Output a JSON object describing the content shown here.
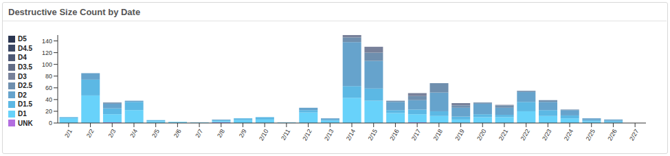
{
  "chart_data": {
    "type": "bar",
    "title": "Destructive Size Count by Date",
    "stacked": true,
    "legend": "left",
    "categories": [
      "2/1",
      "2/2",
      "2/3",
      "2/4",
      "2/5",
      "2/6",
      "2/7",
      "2/8",
      "2/9",
      "2/10",
      "2/11",
      "2/12",
      "2/13",
      "2/14",
      "2/15",
      "2/16",
      "2/17",
      "2/18",
      "2/19",
      "2/20",
      "2/21",
      "2/22",
      "2/23",
      "2/24",
      "2/25",
      "2/26",
      "2/27"
    ],
    "ylim": [
      0,
      150
    ],
    "yticks": [
      0,
      20,
      40,
      60,
      80,
      100,
      120,
      140
    ],
    "series": [
      {
        "name": "D5",
        "color": "#2a3550",
        "values": [
          0,
          0,
          0,
          0,
          0,
          0,
          0,
          0,
          0,
          0,
          0,
          0,
          0,
          0,
          0,
          0,
          0,
          0,
          0,
          0,
          0,
          0,
          0,
          0,
          0,
          0,
          0
        ]
      },
      {
        "name": "D4.5",
        "color": "#3b4763",
        "values": [
          0,
          0,
          0,
          0,
          0,
          0,
          0,
          0,
          0,
          0,
          0,
          0,
          0,
          0,
          0,
          0,
          0,
          0,
          0,
          0,
          0,
          0,
          0,
          0,
          0,
          0,
          0
        ]
      },
      {
        "name": "D4",
        "color": "#4d5874",
        "values": [
          0,
          0,
          0,
          0,
          0,
          0,
          0,
          0,
          0,
          0,
          0,
          0,
          0,
          0,
          0,
          0,
          0,
          0,
          0,
          0,
          0,
          0,
          0,
          0,
          0,
          0,
          0
        ]
      },
      {
        "name": "D3.5",
        "color": "#626c86",
        "values": [
          0,
          0,
          0,
          0,
          0,
          0,
          0,
          0,
          0,
          0,
          0,
          0,
          0,
          0,
          0,
          0,
          0,
          0,
          0,
          0,
          0,
          0,
          0,
          0,
          0,
          0,
          0
        ]
      },
      {
        "name": "D3",
        "color": "#78819a",
        "values": [
          0,
          0,
          0,
          0,
          0,
          0,
          0,
          0,
          0,
          0,
          0,
          0,
          0,
          4,
          10,
          0,
          5,
          0,
          4,
          0,
          1,
          0,
          0,
          0,
          0,
          0,
          0
        ]
      },
      {
        "name": "D2.5",
        "color": "#6f8fae",
        "values": [
          0,
          0,
          2,
          0,
          0,
          0,
          0,
          0,
          0,
          0,
          0,
          0,
          0,
          8,
          14,
          2,
          7,
          16,
          4,
          2,
          4,
          2,
          3,
          1,
          0,
          0,
          0
        ]
      },
      {
        "name": "D2",
        "color": "#66a3cc",
        "values": [
          0,
          11,
          8,
          2,
          0,
          0,
          0,
          1,
          0,
          0,
          0,
          4,
          2,
          75,
          47,
          14,
          16,
          32,
          15,
          18,
          12,
          17,
          14,
          9,
          3,
          2,
          0
        ]
      },
      {
        "name": "D1.5",
        "color": "#5cb8e4",
        "values": [
          2,
          27,
          10,
          14,
          2,
          0,
          0,
          2,
          3,
          4,
          0,
          4,
          2,
          20,
          21,
          5,
          8,
          8,
          5,
          5,
          4,
          16,
          10,
          5,
          2,
          2,
          0
        ]
      },
      {
        "name": "D1",
        "color": "#68d2fa",
        "values": [
          8,
          47,
          14,
          22,
          3,
          2,
          1,
          2,
          5,
          6,
          1,
          18,
          4,
          43,
          38,
          17,
          14,
          12,
          6,
          10,
          10,
          20,
          12,
          8,
          3,
          2,
          0
        ]
      },
      {
        "name": "UNK",
        "color": "#b36ee0",
        "values": [
          0,
          0,
          1,
          0,
          0,
          0,
          0,
          1,
          0,
          0,
          0,
          0,
          0,
          0,
          0,
          0,
          1,
          0,
          0,
          0,
          0,
          0,
          0,
          0,
          0,
          0,
          0
        ]
      }
    ]
  }
}
